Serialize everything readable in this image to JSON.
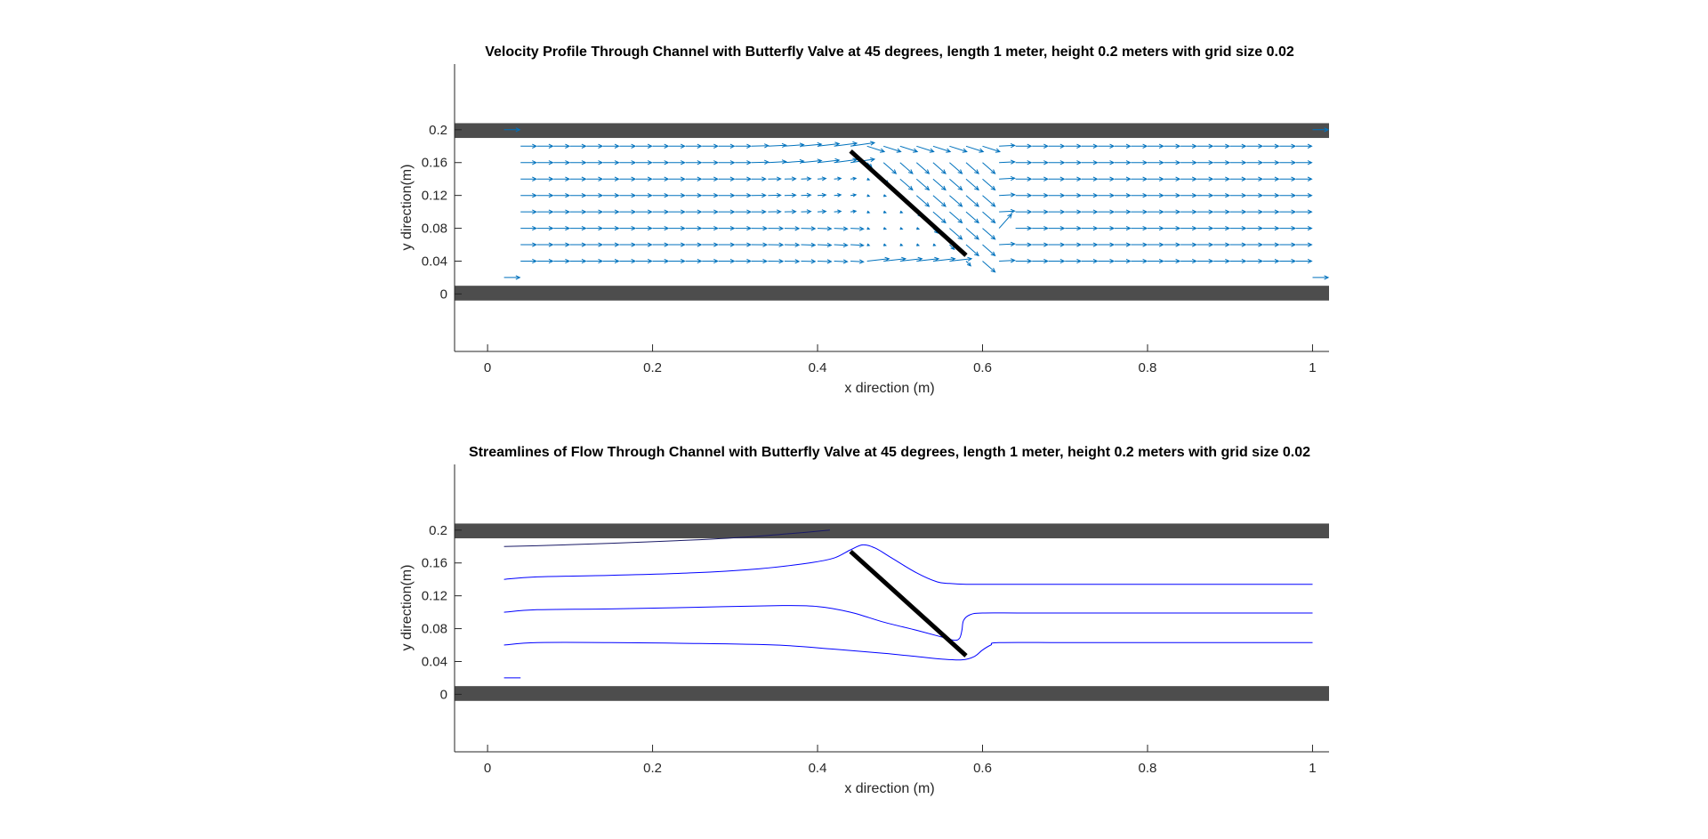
{
  "colors": {
    "wall": "#4d4d4d",
    "quiver": "#0072bd",
    "streamline": "#0000ff",
    "valve": "#000000",
    "axis": "#262626"
  },
  "chart_data": [
    {
      "type": "quiver",
      "title": "Velocity Profile Through Channel with Butterfly Valve at 45 degrees, length 1 meter, height 0.2 meters with grid size 0.02",
      "xlabel": "x direction (m)",
      "ylabel": "y direction(m)",
      "xlim": [
        -0.04,
        1.02
      ],
      "ylim": [
        -0.07,
        0.28
      ],
      "xticks": [
        0,
        0.2,
        0.4,
        0.6,
        0.8,
        1
      ],
      "xtick_labels": [
        "0",
        "0.2",
        "0.4",
        "0.6",
        "0.8",
        "1"
      ],
      "yticks": [
        0,
        0.04,
        0.08,
        0.12,
        0.16,
        0.2
      ],
      "ytick_labels": [
        "0",
        "0.04",
        "0.08",
        "0.12",
        "0.16",
        "0.2"
      ],
      "walls": [
        [
          -0.04,
          1.02,
          0.19,
          0.208
        ],
        [
          -0.04,
          1.02,
          -0.008,
          0.01
        ]
      ],
      "valve": {
        "x1": 0.44,
        "y1": 0.174,
        "x2": 0.58,
        "y2": 0.047,
        "angle_deg": 45
      },
      "grid_spacing": 0.02,
      "x_range": [
        0.02,
        1.0
      ],
      "y_range": [
        0.02,
        0.2
      ],
      "arrow_scale": 0.02,
      "vector_field": "uniform flow of ~1 m/s in +x along the channel, deflected around the 45° valve plate: speeds up toward the top wall upstream, recirculates behind the plate near x≈0.5–0.6, jets under the lower tip near y≈0.04–0.08, then recovers to uniform flow downstream; nearly zero speed at y=0.02 and y=0.2 except at the inlet and outlet"
    },
    {
      "type": "streamline",
      "title": "Streamlines of Flow Through Channel with Butterfly Valve at 45 degrees, length 1 meter, height 0.2 meters with grid size 0.02",
      "xlabel": "x direction (m)",
      "ylabel": "y direction(m)",
      "xlim": [
        -0.04,
        1.02
      ],
      "ylim": [
        -0.07,
        0.28
      ],
      "xticks": [
        0,
        0.2,
        0.4,
        0.6,
        0.8,
        1
      ],
      "xtick_labels": [
        "0",
        "0.2",
        "0.4",
        "0.6",
        "0.8",
        "1"
      ],
      "yticks": [
        0,
        0.04,
        0.08,
        0.12,
        0.16,
        0.2
      ],
      "ytick_labels": [
        "0",
        "0.04",
        "0.08",
        "0.12",
        "0.16",
        "0.2"
      ],
      "walls": [
        [
          -0.04,
          1.02,
          0.19,
          0.208
        ],
        [
          -0.04,
          1.02,
          -0.008,
          0.01
        ]
      ],
      "valve": {
        "x1": 0.44,
        "y1": 0.174,
        "x2": 0.58,
        "y2": 0.047,
        "angle_deg": 45
      },
      "streamlines": [
        {
          "x": [
            0.02,
            0.06,
            0.15,
            0.25,
            0.32,
            0.37,
            0.415
          ],
          "y": [
            0.18,
            0.181,
            0.184,
            0.188,
            0.192,
            0.196,
            0.2
          ],
          "dark": true
        },
        {
          "x": [
            0.02,
            0.06,
            0.15,
            0.25,
            0.33,
            0.39,
            0.42,
            0.44,
            0.455,
            0.47,
            0.49,
            0.52,
            0.545,
            0.56,
            0.58,
            0.62,
            0.7,
            0.8,
            0.9,
            1.0
          ],
          "y": [
            0.14,
            0.143,
            0.145,
            0.148,
            0.153,
            0.16,
            0.166,
            0.176,
            0.182,
            0.178,
            0.166,
            0.148,
            0.137,
            0.135,
            0.134,
            0.134,
            0.134,
            0.134,
            0.134,
            0.134
          ]
        },
        {
          "x": [
            0.02,
            0.06,
            0.15,
            0.25,
            0.35,
            0.4,
            0.44,
            0.48,
            0.52,
            0.55,
            0.565,
            0.572,
            0.575,
            0.577,
            0.585,
            0.6,
            0.65,
            0.75,
            0.85,
            1.0
          ],
          "y": [
            0.1,
            0.103,
            0.104,
            0.106,
            0.108,
            0.107,
            0.1,
            0.088,
            0.078,
            0.07,
            0.066,
            0.068,
            0.078,
            0.09,
            0.097,
            0.099,
            0.099,
            0.099,
            0.099,
            0.099
          ]
        },
        {
          "x": [
            0.02,
            0.06,
            0.15,
            0.25,
            0.35,
            0.42,
            0.48,
            0.52,
            0.55,
            0.575,
            0.59,
            0.6,
            0.61,
            0.62,
            0.7,
            0.8,
            0.9,
            1.0
          ],
          "y": [
            0.06,
            0.063,
            0.063,
            0.062,
            0.06,
            0.055,
            0.05,
            0.046,
            0.043,
            0.042,
            0.046,
            0.054,
            0.06,
            0.063,
            0.063,
            0.063,
            0.063,
            0.063
          ]
        },
        {
          "x": [
            0.02,
            0.04
          ],
          "y": [
            0.02,
            0.02
          ]
        }
      ]
    }
  ]
}
